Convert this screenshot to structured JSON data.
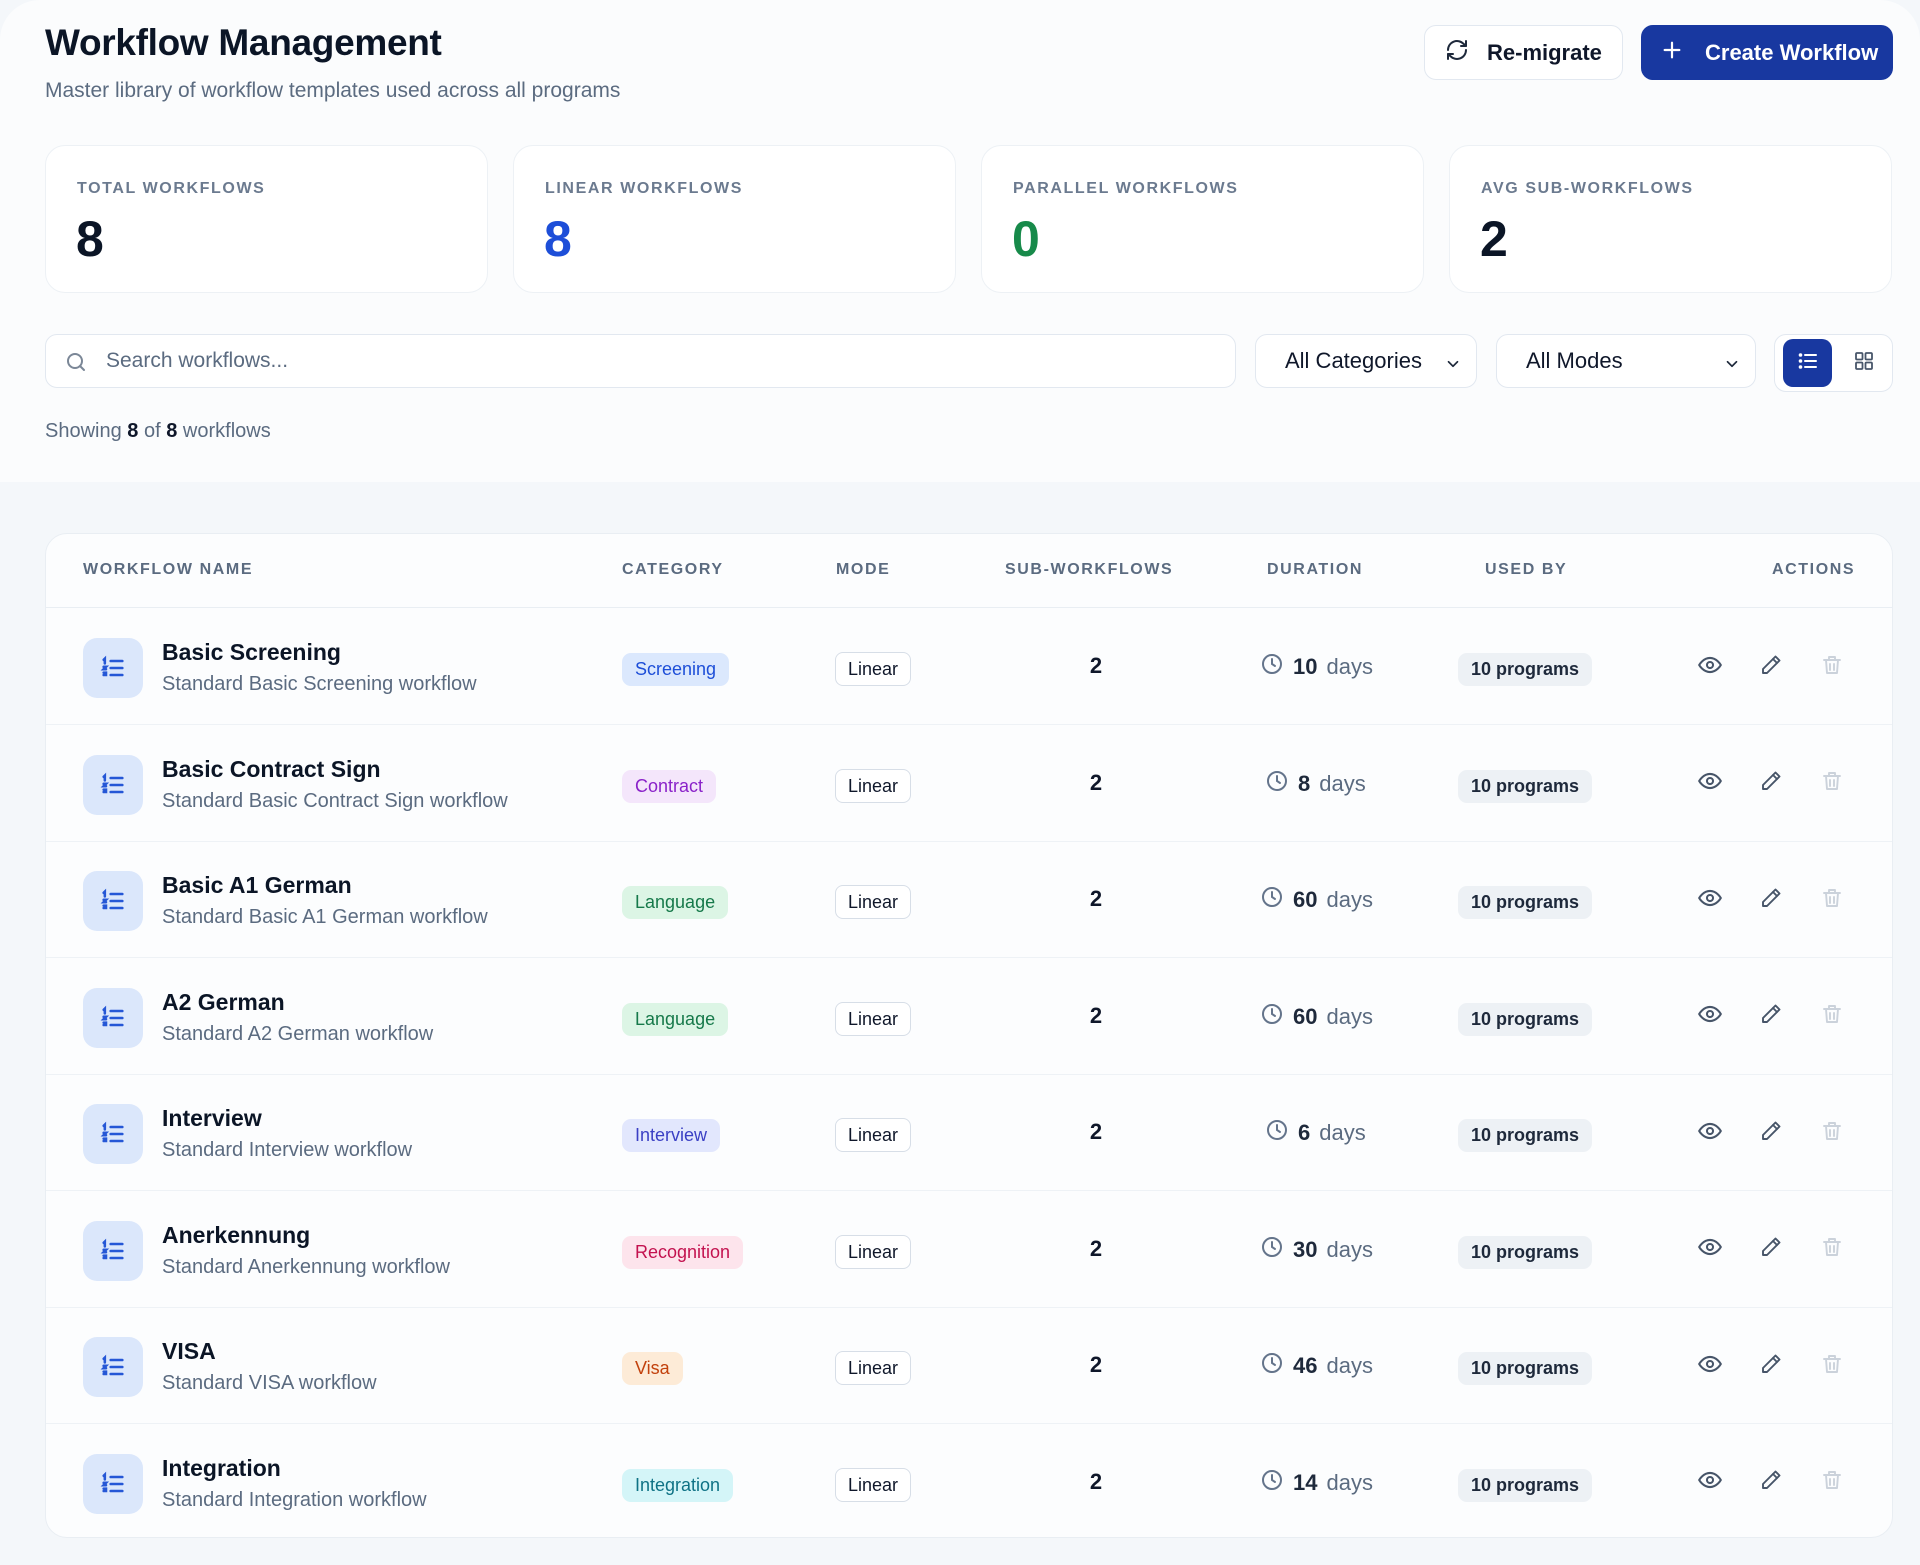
{
  "header": {
    "title": "Workflow Management",
    "subtitle": "Master library of workflow templates used across all programs",
    "remigrate_label": "Re-migrate",
    "create_label": "Create Workflow"
  },
  "stats": [
    {
      "label": "TOTAL WORKFLOWS",
      "value": "8",
      "color": "#0b1526"
    },
    {
      "label": "LINEAR WORKFLOWS",
      "value": "8",
      "color": "#1d4ed8"
    },
    {
      "label": "PARALLEL WORKFLOWS",
      "value": "0",
      "color": "#178a4a"
    },
    {
      "label": "AVG SUB-WORKFLOWS",
      "value": "2",
      "color": "#0b1526"
    }
  ],
  "filters": {
    "search_placeholder": "Search workflows...",
    "category_selected": "All Categories",
    "mode_selected": "All Modes"
  },
  "showing": {
    "prefix": "Showing",
    "shown": "8",
    "of": "of",
    "total": "8",
    "suffix": "workflows"
  },
  "table": {
    "headers": {
      "name": "WORKFLOW NAME",
      "category": "CATEGORY",
      "mode": "MODE",
      "sub": "SUB-WORKFLOWS",
      "duration": "DURATION",
      "used_by": "USED BY",
      "actions": "ACTIONS"
    },
    "rows": [
      {
        "name": "Basic Screening",
        "desc": "Standard Basic Screening workflow",
        "category": "Screening",
        "mode": "Linear",
        "sub": "2",
        "days": "10",
        "unit": "days",
        "used_by": "10 programs"
      },
      {
        "name": "Basic Contract Sign",
        "desc": "Standard Basic Contract Sign workflow",
        "category": "Contract",
        "mode": "Linear",
        "sub": "2",
        "days": "8",
        "unit": "days",
        "used_by": "10 programs"
      },
      {
        "name": "Basic A1 German",
        "desc": "Standard Basic A1 German workflow",
        "category": "Language",
        "mode": "Linear",
        "sub": "2",
        "days": "60",
        "unit": "days",
        "used_by": "10 programs"
      },
      {
        "name": "A2 German",
        "desc": "Standard A2 German workflow",
        "category": "Language",
        "mode": "Linear",
        "sub": "2",
        "days": "60",
        "unit": "days",
        "used_by": "10 programs"
      },
      {
        "name": "Interview",
        "desc": "Standard Interview workflow",
        "category": "Interview",
        "mode": "Linear",
        "sub": "2",
        "days": "6",
        "unit": "days",
        "used_by": "10 programs"
      },
      {
        "name": "Anerkennung",
        "desc": "Standard Anerkennung workflow",
        "category": "Recognition",
        "mode": "Linear",
        "sub": "2",
        "days": "30",
        "unit": "days",
        "used_by": "10 programs"
      },
      {
        "name": "VISA",
        "desc": "Standard VISA workflow",
        "category": "Visa",
        "mode": "Linear",
        "sub": "2",
        "days": "46",
        "unit": "days",
        "used_by": "10 programs"
      },
      {
        "name": "Integration",
        "desc": "Standard Integration workflow",
        "category": "Integration",
        "mode": "Linear",
        "sub": "2",
        "days": "14",
        "unit": "days",
        "used_by": "10 programs"
      }
    ]
  },
  "category_colors": {
    "Screening": {
      "bg": "#dbe8fd",
      "fg": "#1d4ed8"
    },
    "Contract": {
      "bg": "#f4e6fb",
      "fg": "#8a22c9"
    },
    "Language": {
      "bg": "#dcf5e5",
      "fg": "#16794a"
    },
    "Interview": {
      "bg": "#e2e7fd",
      "fg": "#3a3fc4"
    },
    "Recognition": {
      "bg": "#fde4ec",
      "fg": "#c3124f"
    },
    "Visa": {
      "bg": "#fdebd7",
      "fg": "#c2410c"
    },
    "Integration": {
      "bg": "#d4f5f8",
      "fg": "#0f7285"
    }
  },
  "icons": {
    "refresh": "refresh-icon",
    "plus": "plus-icon",
    "search": "search-icon",
    "chevron": "chevron-down-icon",
    "list_view": "list-view-icon",
    "grid_view": "grid-view-icon",
    "workflow": "list-ordered-icon",
    "clock": "clock-icon",
    "view": "eye-icon",
    "edit": "pencil-icon",
    "delete": "trash-icon"
  }
}
